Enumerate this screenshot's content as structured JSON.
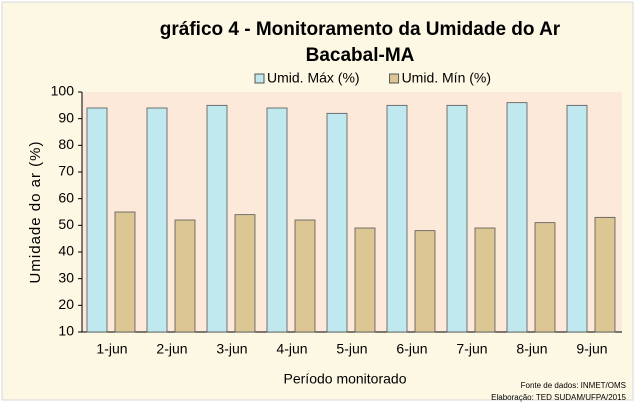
{
  "chart_data": {
    "type": "bar",
    "title": "gráfico 4 - Monitoramento da Umidade do Ar",
    "subtitle": "Bacabal-MA",
    "y_label": "Umidade do ar (%)",
    "x_label": "Período monitorado",
    "source": "Fonte de dados: INMET/OMS",
    "credit": "Elaboração: TED SUDAM/UFPA/2015",
    "categories": [
      "1-jun",
      "2-jun",
      "3-jun",
      "4-jun",
      "5-jun",
      "6-jun",
      "7-jun",
      "8-jun",
      "9-jun"
    ],
    "series": [
      {
        "name": "Umid. Máx (%)",
        "color": "#bfe9ee",
        "values": [
          94,
          94,
          95,
          94,
          92,
          95,
          95,
          96,
          95
        ]
      },
      {
        "name": "Umid. Mín (%)",
        "color": "#dcc694",
        "values": [
          55,
          52,
          54,
          52,
          49,
          48,
          49,
          51,
          53
        ]
      }
    ],
    "ylim": [
      10,
      100
    ],
    "yticks": [
      10,
      20,
      30,
      40,
      50,
      60,
      70,
      80,
      90,
      100
    ],
    "legend": "top"
  }
}
